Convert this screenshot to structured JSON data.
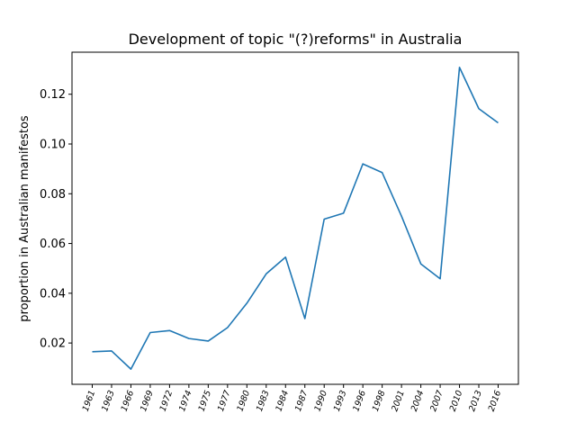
{
  "chart_data": {
    "type": "line",
    "title": "Development of topic \"(?)reforms\" in Australia",
    "xlabel": "",
    "ylabel": "proportion in Australian manifestos",
    "categories": [
      "1961",
      "1963",
      "1966",
      "1969",
      "1972",
      "1974",
      "1975",
      "1977",
      "1980",
      "1983",
      "1984",
      "1987",
      "1990",
      "1993",
      "1996",
      "1998",
      "2001",
      "2004",
      "2007",
      "2010",
      "2013",
      "2016"
    ],
    "series": [
      {
        "values": [
          0.0165,
          0.0168,
          0.0095,
          0.0242,
          0.025,
          0.0218,
          0.0208,
          0.0262,
          0.036,
          0.0478,
          0.0545,
          0.0298,
          0.0698,
          0.0722,
          0.092,
          0.0885,
          0.071,
          0.0518,
          0.0458,
          0.1308,
          0.1142,
          0.1085
        ],
        "color": "#1f77b4"
      }
    ],
    "ylim": [
      0.0034,
      0.1369
    ],
    "yticks": [
      "0.02",
      "0.04",
      "0.06",
      "0.08",
      "0.10",
      "0.12"
    ],
    "grid": false,
    "legend": "none"
  }
}
